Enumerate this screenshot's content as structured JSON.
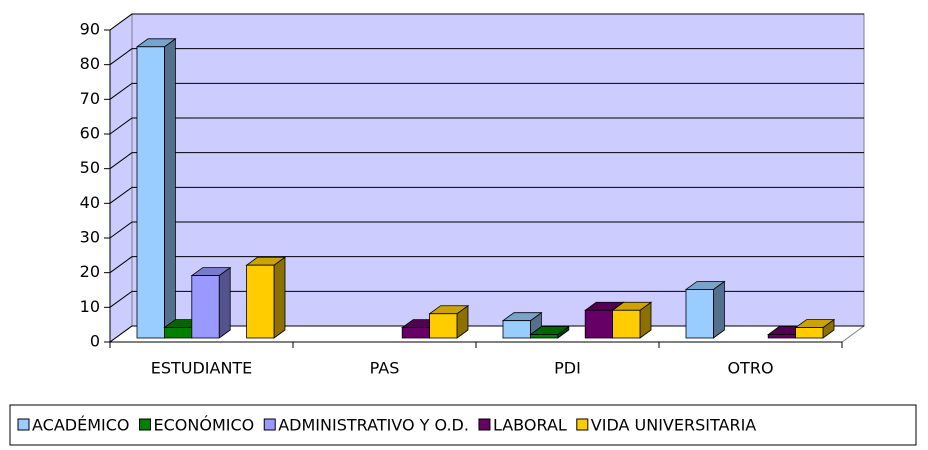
{
  "chart_data": {
    "type": "bar3d",
    "categories": [
      "ESTUDIANTE",
      "PAS",
      "PDI",
      "OTRO"
    ],
    "series": [
      {
        "name": "ACADÉMICO",
        "color": "#99ccff",
        "values": [
          84,
          0,
          5,
          14
        ]
      },
      {
        "name": "ECONÓMICO",
        "color": "#008000",
        "values": [
          3,
          0,
          1,
          0
        ]
      },
      {
        "name": "ADMINISTRATIVO Y O.D.",
        "color": "#9999ff",
        "values": [
          18,
          0,
          0,
          0
        ]
      },
      {
        "name": "LABORAL",
        "color": "#660066",
        "values": [
          0,
          3,
          8,
          1
        ]
      },
      {
        "name": "VIDA UNIVERSITARIA",
        "color": "#ffcc00",
        "values": [
          21,
          7,
          8,
          3
        ]
      }
    ],
    "ylim": [
      0,
      90
    ],
    "yticks": [
      0,
      10,
      20,
      30,
      40,
      50,
      60,
      70,
      80,
      90
    ],
    "grid": true,
    "wall_color": "#ccccff",
    "legend": "bottom"
  }
}
